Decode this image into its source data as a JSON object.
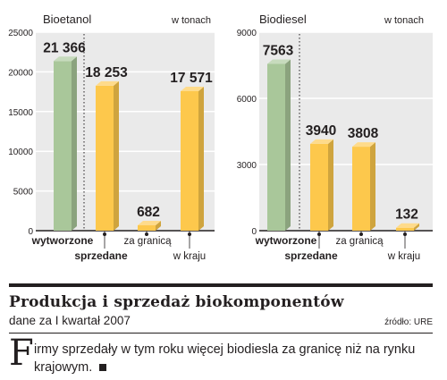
{
  "chart_data": [
    {
      "type": "bar",
      "title": "Bioetanol",
      "unit_label": "w tonach",
      "categories": [
        "wytworzone",
        "sprzedane",
        "za granicą",
        "w kraju"
      ],
      "values": [
        21366,
        18253,
        682,
        17571
      ],
      "value_labels": [
        "21 366",
        "18 253",
        "682",
        "17 571"
      ],
      "yticks": [
        "0",
        "5000",
        "10000",
        "15000",
        "20000",
        "25000"
      ],
      "ylim": [
        0,
        25000
      ],
      "bar_colors": [
        "#a9c79a",
        "#fdc84c",
        "#fdc84c",
        "#fdc84c"
      ],
      "grid": true
    },
    {
      "type": "bar",
      "title": "Biodiesel",
      "unit_label": "w tonach",
      "categories": [
        "wytworzone",
        "sprzedane",
        "za granicą",
        "w kraju"
      ],
      "values": [
        7563,
        3940,
        3808,
        132
      ],
      "value_labels": [
        "7563",
        "3940",
        "3808",
        "132"
      ],
      "yticks": [
        "0",
        "3000",
        "6000",
        "9000"
      ],
      "ylim": [
        0,
        9000
      ],
      "bar_colors": [
        "#a9c79a",
        "#fdc84c",
        "#fdc84c",
        "#fdc84c"
      ],
      "grid": true
    }
  ],
  "article": {
    "title": "Produkcja i sprzedaż biokomponentów",
    "subtitle": "dane za I kwartał 2007",
    "source": "źródło: URE",
    "dropcap": "F",
    "lead": "irmy sprzedały w tym roku więcej biodiesla za granicę niż na rynku krajowym."
  },
  "colors": {
    "panel_bg": "#eaeaea",
    "grid_line": "#ffffff",
    "green_bar": "#a9c79a",
    "yellow_bar": "#fdc84c",
    "text": "#231f20"
  }
}
